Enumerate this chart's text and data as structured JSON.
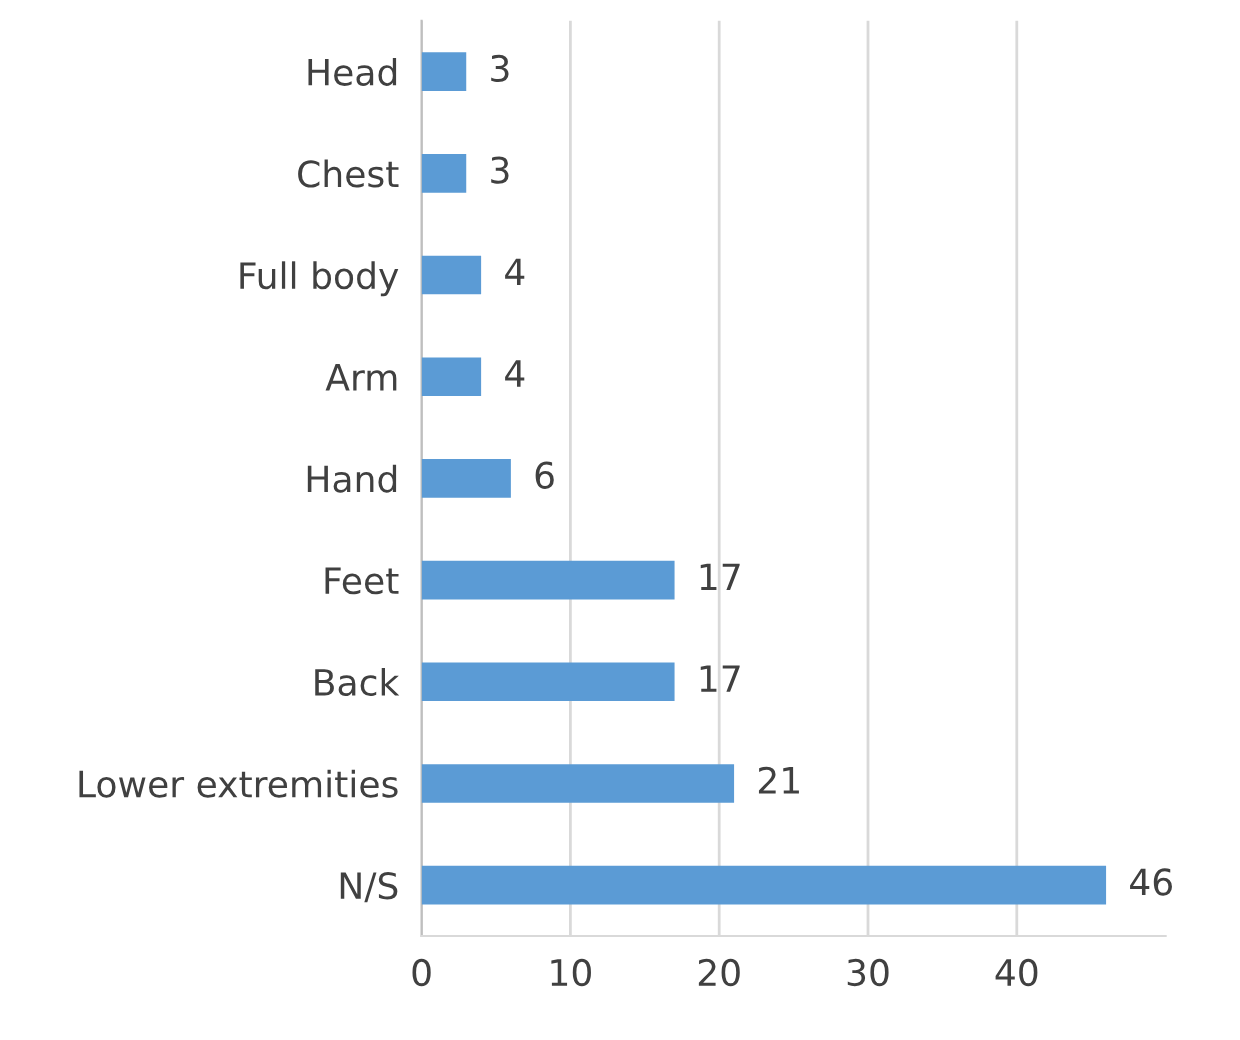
{
  "chart_data": {
    "type": "bar",
    "orientation": "horizontal",
    "categories": [
      "Head",
      "Chest",
      "Full body",
      "Arm",
      "Hand",
      "Feet",
      "Back",
      "Lower extremities",
      "N/S"
    ],
    "values": [
      3,
      3,
      4,
      4,
      6,
      17,
      17,
      21,
      46
    ],
    "color": "#5b9bd5",
    "xlim": [
      0,
      50
    ],
    "xticks": [
      0,
      10,
      20,
      30,
      40
    ],
    "grid": "x",
    "data_labels": true
  }
}
